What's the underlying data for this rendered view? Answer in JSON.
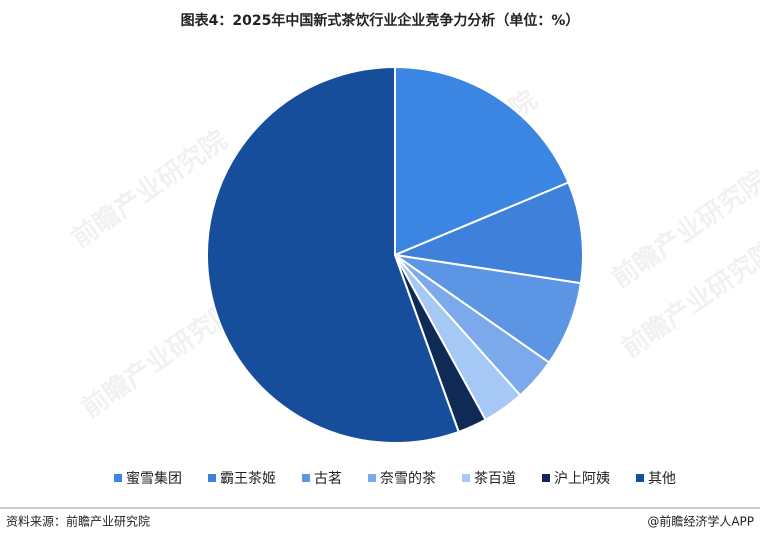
{
  "chart_data": {
    "type": "pie",
    "title": "图表4：2025年中国新式茶饮行业企业竞争力分析（单位：%）",
    "categories": [
      "蜜雪集团",
      "霸王茶姬",
      "古茗",
      "奈雪的茶",
      "茶百道",
      "沪上阿姨",
      "其他"
    ],
    "values": [
      18.7,
      8.7,
      7.3,
      3.7,
      3.6,
      2.5,
      55.5
    ],
    "colors": [
      "#3b86e3",
      "#3f80da",
      "#5c95e4",
      "#7ba9ec",
      "#a6c8f4",
      "#0f2b55",
      "#174e9b"
    ],
    "legend": "bottom",
    "source": "资料来源：前瞻产业研究院",
    "credit": "@前瞻经济学人APP",
    "watermark": "前瞻产业研究院"
  }
}
